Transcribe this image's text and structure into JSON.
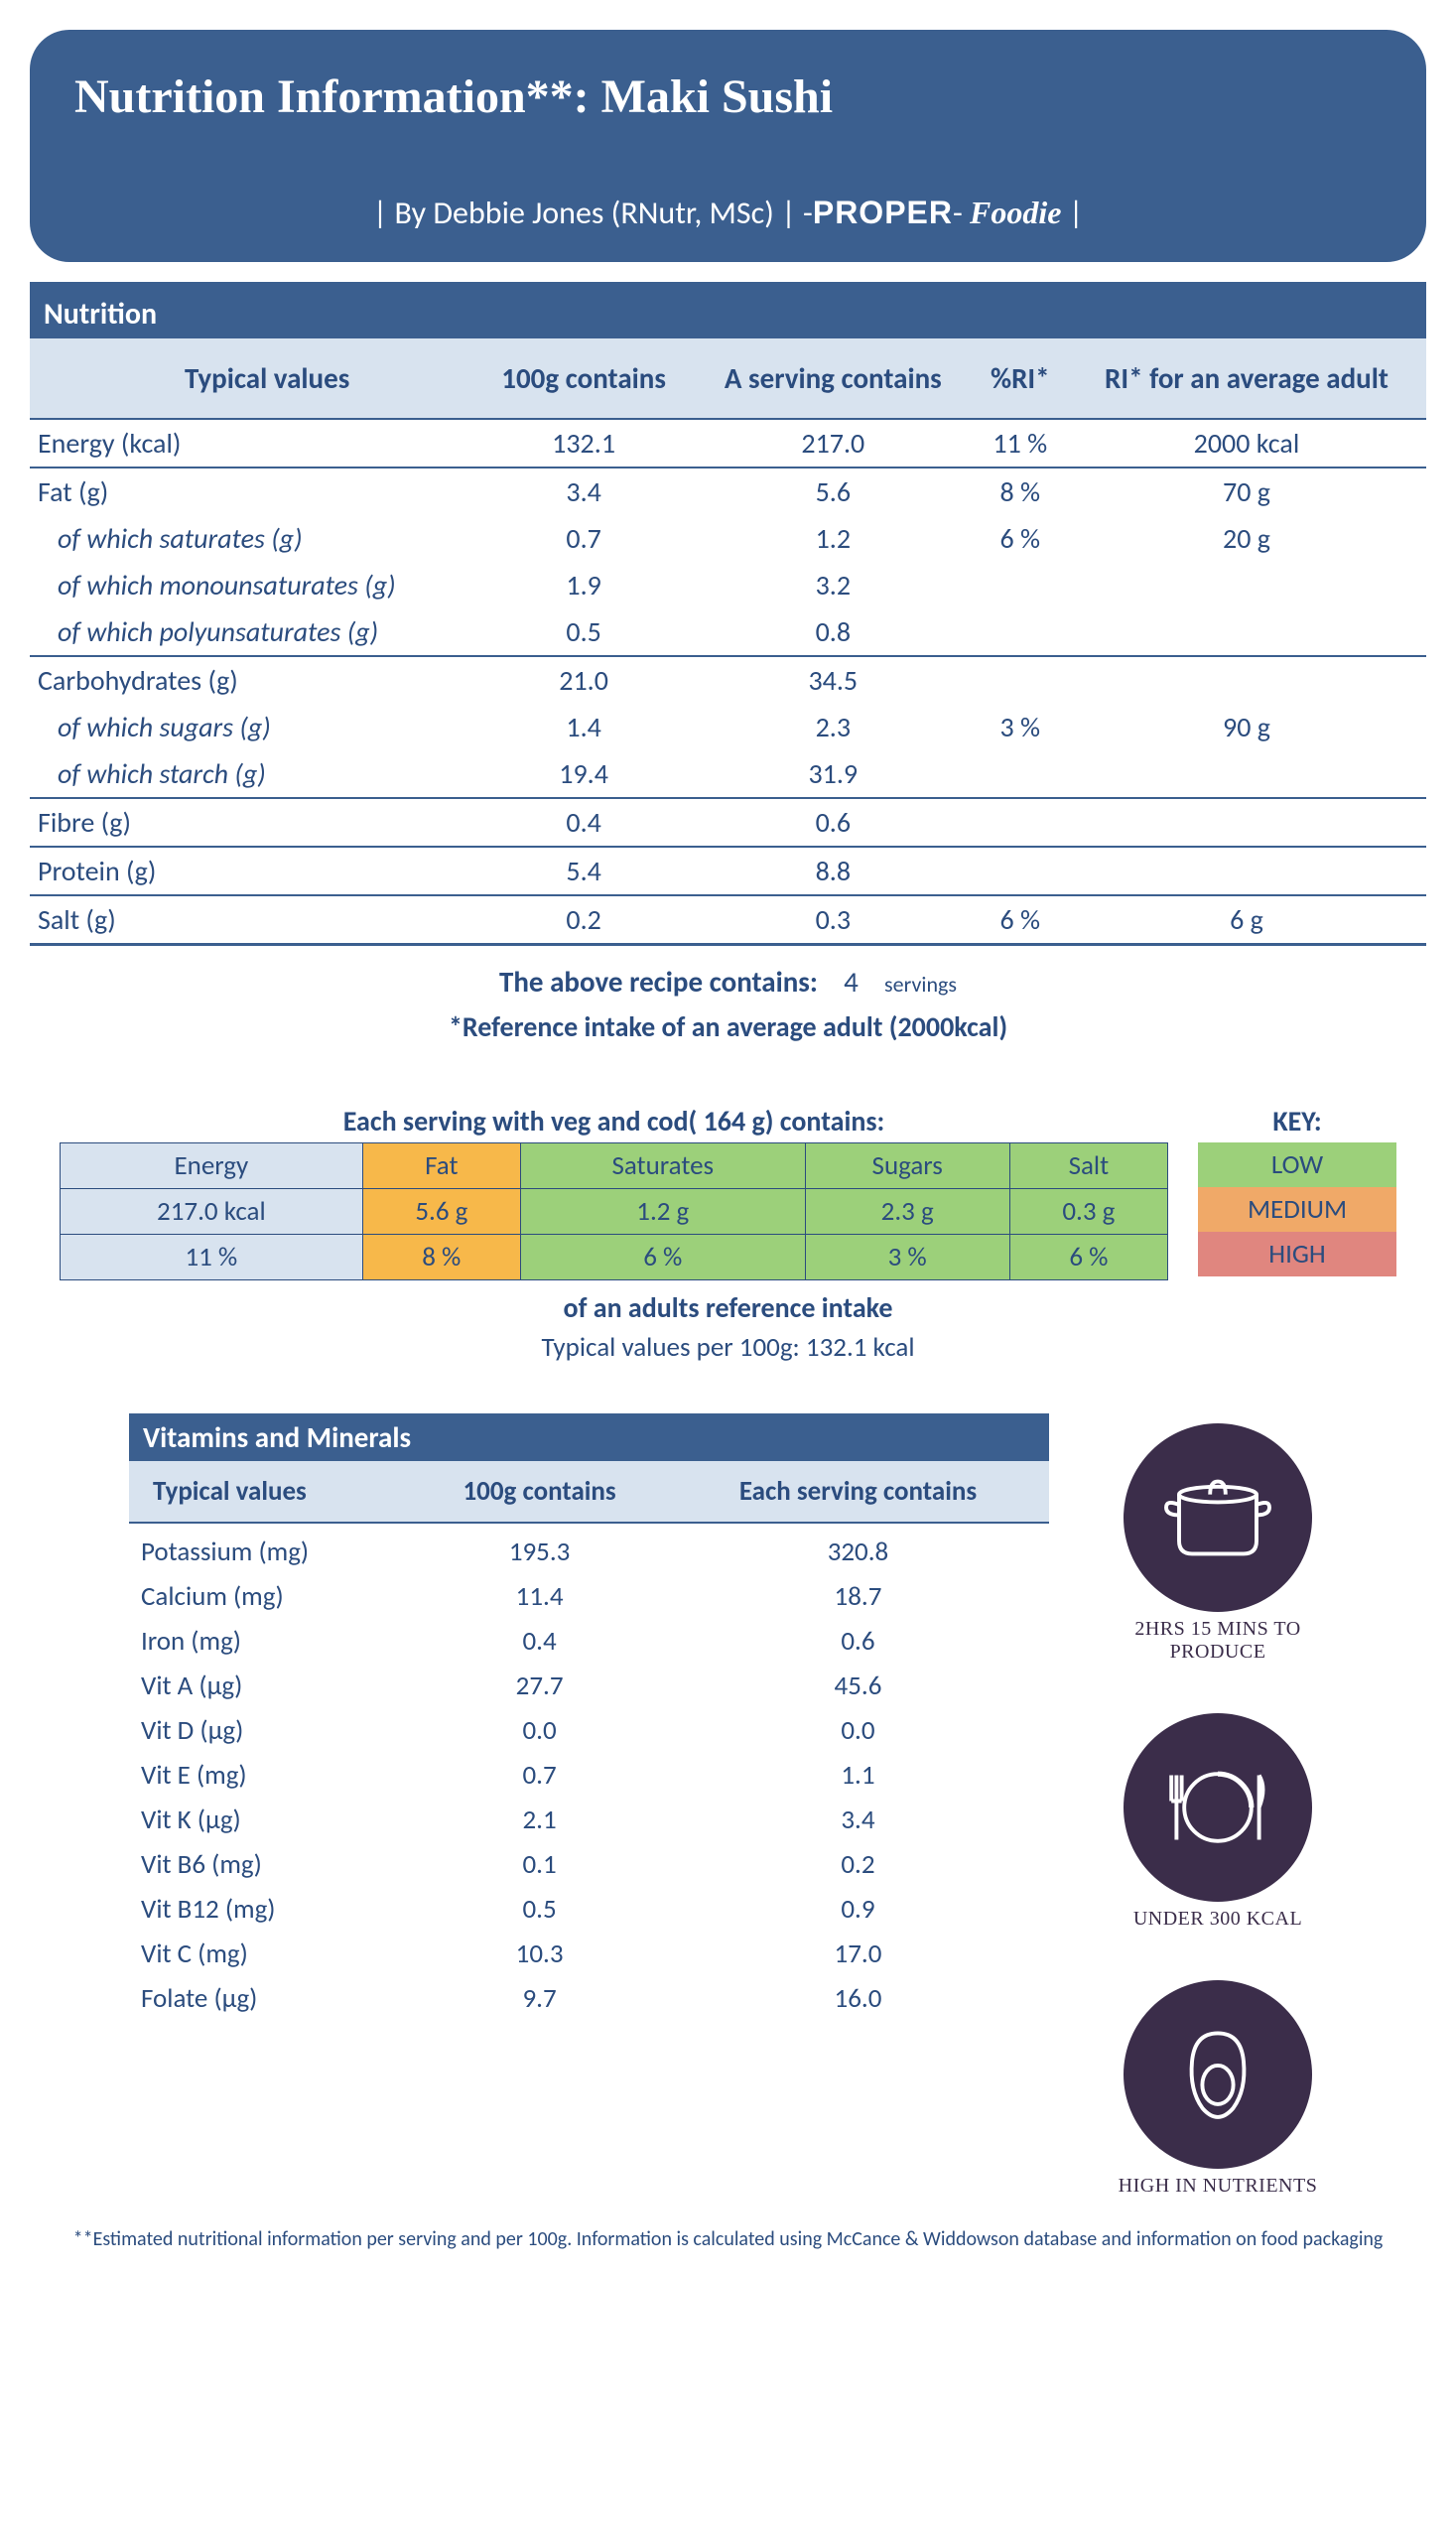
{
  "header": {
    "title": "Nutrition Information**: Maki Sushi",
    "byline_prefix": "| By Debbie Jones (RNutr, MSc) | -",
    "byline_brand1": "PROPER",
    "byline_mid": "- ",
    "byline_brand2": "Foodie",
    "byline_suffix": " |"
  },
  "nutrition": {
    "section_title": "Nutrition",
    "columns": [
      "Typical values",
      "100g contains",
      "A serving contains",
      "%RI*",
      "RI* for an average adult"
    ],
    "rows": [
      {
        "type": "main",
        "label": "Energy (kcal)",
        "c100": "132.1",
        "serv": "217.0",
        "ri": "11  %",
        "ref": "2000  kcal"
      },
      {
        "type": "main",
        "label": "Fat (g)",
        "c100": "3.4",
        "serv": "5.6",
        "ri": "8  %",
        "ref": "70  g"
      },
      {
        "type": "sub",
        "label": "of which saturates (g)",
        "c100": "0.7",
        "serv": "1.2",
        "ri": "6  %",
        "ref": "20  g"
      },
      {
        "type": "sub",
        "label": "of which monounsaturates (g)",
        "c100": "1.9",
        "serv": "3.2",
        "ri": "",
        "ref": ""
      },
      {
        "type": "sub",
        "label": "of which polyunsaturates (g)",
        "c100": "0.5",
        "serv": "0.8",
        "ri": "",
        "ref": ""
      },
      {
        "type": "main",
        "label": "Carbohydrates (g)",
        "c100": "21.0",
        "serv": "34.5",
        "ri": "",
        "ref": ""
      },
      {
        "type": "sub",
        "label": "of which sugars (g)",
        "c100": "1.4",
        "serv": "2.3",
        "ri": "3  %",
        "ref": "90  g"
      },
      {
        "type": "sub",
        "label": "of which starch (g)",
        "c100": "19.4",
        "serv": "31.9",
        "ri": "",
        "ref": ""
      },
      {
        "type": "main",
        "label": "Fibre (g)",
        "c100": "0.4",
        "serv": "0.6",
        "ri": "",
        "ref": ""
      },
      {
        "type": "main",
        "label": "Protein (g)",
        "c100": "5.4",
        "serv": "8.8",
        "ri": "",
        "ref": ""
      },
      {
        "type": "main",
        "label": "Salt (g)",
        "c100": "0.2",
        "serv": "0.3",
        "ri": "6  %",
        "ref": "6  g"
      }
    ],
    "servings_label": "The above recipe contains:",
    "servings_count": "4",
    "servings_unit": "servings",
    "ri_note": "*Reference intake of an average adult (2000kcal)"
  },
  "traffic": {
    "title_prefix": "Each serving with veg and cod(   ",
    "title_weight": "164",
    "title_suffix": "  g) contains:",
    "columns": [
      {
        "name": "Energy",
        "val": "217.0  kcal",
        "pct": "11  %",
        "color": "#d8e3ef"
      },
      {
        "name": "Fat",
        "val": "5.6  g",
        "pct": "8  %",
        "color": "#f7b84a"
      },
      {
        "name": "Saturates",
        "val": "1.2  g",
        "pct": "6  %",
        "color": "#9cd07a"
      },
      {
        "name": "Sugars",
        "val": "2.3  g",
        "pct": "3  %",
        "color": "#9cd07a"
      },
      {
        "name": "Salt",
        "val": "0.3  g",
        "pct": "6  %",
        "color": "#9cd07a"
      }
    ],
    "key_title": "KEY:",
    "keys": [
      {
        "label": "LOW",
        "color": "#9cd07a"
      },
      {
        "label": "MEDIUM",
        "color": "#f0a968"
      },
      {
        "label": "HIGH",
        "color": "#e0867f"
      }
    ],
    "sub1": "of an adults reference intake",
    "sub2_prefix": "Typical values per 100g:   ",
    "sub2_val": "132.1  kcal"
  },
  "vitamins": {
    "section_title": "Vitamins and Minerals",
    "columns": [
      "Typical values",
      "100g contains",
      "Each serving contains"
    ],
    "rows": [
      {
        "label": "Potassium (mg)",
        "c100": "195.3",
        "serv": "320.8"
      },
      {
        "label": "Calcium (mg)",
        "c100": "11.4",
        "serv": "18.7"
      },
      {
        "label": "Iron (mg)",
        "c100": "0.4",
        "serv": "0.6"
      },
      {
        "label": "Vit A (µg)",
        "c100": "27.7",
        "serv": "45.6"
      },
      {
        "label": "Vit D (µg)",
        "c100": "0.0",
        "serv": "0.0"
      },
      {
        "label": "Vit E (mg)",
        "c100": "0.7",
        "serv": "1.1"
      },
      {
        "label": "Vit K (µg)",
        "c100": "2.1",
        "serv": "3.4"
      },
      {
        "label": "Vit B6 (mg)",
        "c100": "0.1",
        "serv": "0.2"
      },
      {
        "label": "Vit B12 (mg)",
        "c100": "0.5",
        "serv": "0.9"
      },
      {
        "label": "Vit C (mg)",
        "c100": "10.3",
        "serv": "17.0"
      },
      {
        "label": "Folate (µg)",
        "c100": "9.7",
        "serv": "16.0"
      }
    ]
  },
  "badges": {
    "time": "2HRS 15 MINS TO PRODUCE",
    "kcal": "UNDER 300 KCAL",
    "nutrients": "HIGH IN NUTRIENTS"
  },
  "footnote": "**Estimated nutritional information per serving and per 100g. Information is calculated using McCance & Widdowson database and information on food packaging",
  "colors": {
    "primary": "#3b5f8f",
    "header_bg": "#d8e3ef",
    "badge_bg": "#3b2d4a"
  }
}
